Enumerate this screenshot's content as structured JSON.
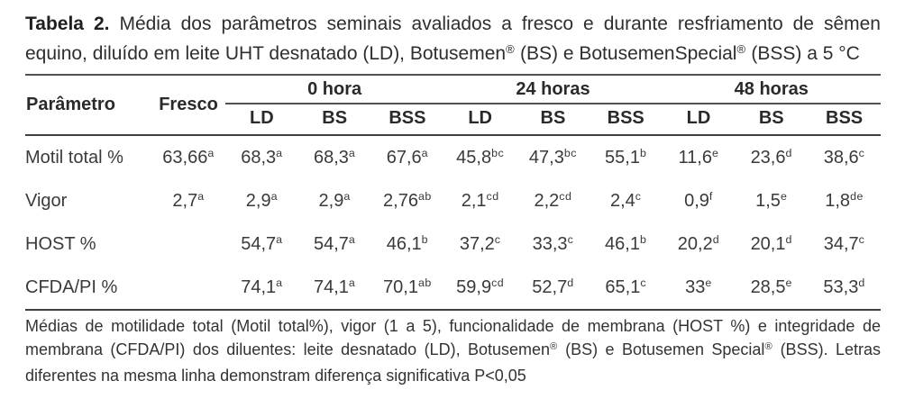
{
  "title": {
    "segments": [
      {
        "text": "Tabela 2.",
        "bold": true
      },
      {
        "text": " Média dos parâmetros seminais avaliados a fresco e durante resfriamento de sêmen equino, diluído em leite UHT desnatado (LD), Botusemen"
      },
      {
        "text": "®",
        "sup": true
      },
      {
        "text": " (BS) e BotusemenSpecial"
      },
      {
        "text": "®",
        "sup": true
      },
      {
        "text": " (BSS) a 5 °C"
      }
    ]
  },
  "table": {
    "header": {
      "param_label": "Parâmetro",
      "fresco_label": "Fresco",
      "groups": [
        {
          "label": "0 hora",
          "cols": [
            "LD",
            "BS",
            "BSS"
          ]
        },
        {
          "label": "24 horas",
          "cols": [
            "LD",
            "BS",
            "BSS"
          ]
        },
        {
          "label": "48 horas",
          "cols": [
            "LD",
            "BS",
            "BSS"
          ]
        }
      ]
    },
    "rows": [
      {
        "label": "Motil total %",
        "fresco": {
          "v": "63,66",
          "s": "a"
        },
        "cells": [
          {
            "v": "68,3",
            "s": "a"
          },
          {
            "v": "68,3",
            "s": "a"
          },
          {
            "v": "67,6",
            "s": "a"
          },
          {
            "v": "45,8",
            "s": "bc"
          },
          {
            "v": "47,3",
            "s": "bc"
          },
          {
            "v": "55,1",
            "s": "b"
          },
          {
            "v": "11,6",
            "s": "e"
          },
          {
            "v": "23,6",
            "s": "d"
          },
          {
            "v": "38,6",
            "s": "c"
          }
        ]
      },
      {
        "label": "Vigor",
        "fresco": {
          "v": "2,7",
          "s": "a"
        },
        "cells": [
          {
            "v": "2,9",
            "s": "a"
          },
          {
            "v": "2,9",
            "s": "a"
          },
          {
            "v": "2,76",
            "s": "ab"
          },
          {
            "v": "2,1",
            "s": "cd"
          },
          {
            "v": "2,2",
            "s": "cd"
          },
          {
            "v": "2,4",
            "s": "c"
          },
          {
            "v": "0,9",
            "s": "f"
          },
          {
            "v": "1,5",
            "s": "e"
          },
          {
            "v": "1,8",
            "s": "de"
          }
        ]
      },
      {
        "label": "HOST %",
        "fresco": null,
        "cells": [
          {
            "v": "54,7",
            "s": "a"
          },
          {
            "v": "54,7",
            "s": "a"
          },
          {
            "v": "46,1",
            "s": "b"
          },
          {
            "v": "37,2",
            "s": "c"
          },
          {
            "v": "33,3",
            "s": "c"
          },
          {
            "v": "46,1",
            "s": "b"
          },
          {
            "v": "20,2",
            "s": "d"
          },
          {
            "v": "20,1",
            "s": "d"
          },
          {
            "v": "34,7",
            "s": "c"
          }
        ]
      },
      {
        "label": "CFDA/PI %",
        "fresco": null,
        "cells": [
          {
            "v": "74,1",
            "s": "a"
          },
          {
            "v": "74,1",
            "s": "a"
          },
          {
            "v": "70,1",
            "s": "ab"
          },
          {
            "v": "59,9",
            "s": "cd"
          },
          {
            "v": "52,7",
            "s": "d"
          },
          {
            "v": "65,1",
            "s": "c"
          },
          {
            "v": "33",
            "s": "e"
          },
          {
            "v": "28,5",
            "s": "e"
          },
          {
            "v": "53,3",
            "s": "d"
          }
        ]
      }
    ]
  },
  "footnote": {
    "segments": [
      {
        "text": "Médias de motilidade total (Motil total%), vigor (1 a 5), funcionalidade de membrana (HOST %) e integridade de membrana (CFDA/PI) dos diluentes: leite desnatado (LD), Botusemen"
      },
      {
        "text": "®",
        "sup": true
      },
      {
        "text": " (BS) e Botusemen Special"
      },
      {
        "text": "®",
        "sup": true
      },
      {
        "text": " (BSS). Letras diferentes na mesma linha demonstram diferença significativa P<0,05"
      }
    ]
  },
  "colors": {
    "background": "#ffffff",
    "body_text": "#3a3a3a",
    "title_text": "#1f1f1f",
    "rule": "#4a4a4a"
  }
}
